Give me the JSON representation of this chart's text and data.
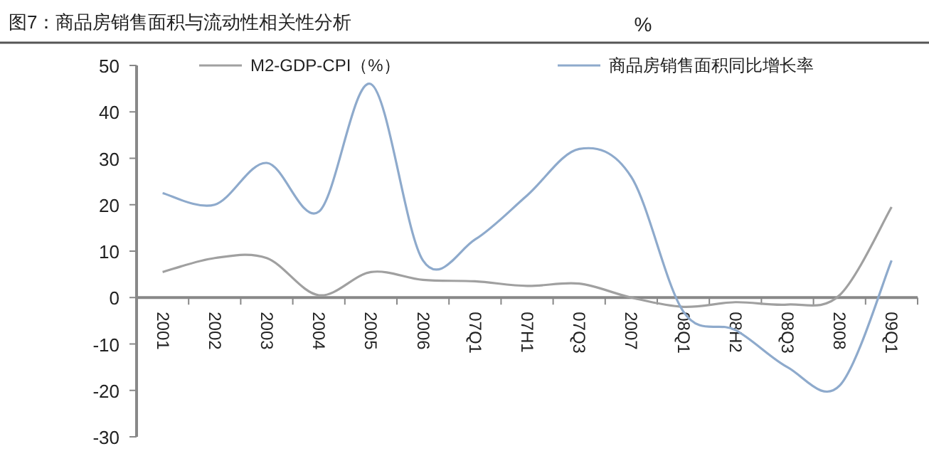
{
  "chart_data": {
    "type": "line",
    "title": "图7：商品房销售面积与流动性相关性分析",
    "ylabel": "%",
    "categories": [
      "2001",
      "2002",
      "2003",
      "2004",
      "2005",
      "2006",
      "07Q1",
      "07H1",
      "07Q3",
      "2007",
      "08Q1",
      "08H2",
      "08Q3",
      "2008",
      "09Q1"
    ],
    "series": [
      {
        "name": "M2-GDP-CPI（%）",
        "color": "#a0a0a0",
        "values": [
          5.5,
          8.5,
          8.5,
          0.5,
          5.5,
          3.8,
          3.5,
          2.5,
          3,
          0,
          -2,
          -1,
          -1.5,
          0.5,
          19.5
        ]
      },
      {
        "name": "商品房销售面积同比增长率",
        "color": "#8eaacc",
        "values": [
          22.5,
          20,
          29,
          18.5,
          46,
          8,
          12.5,
          22,
          32,
          26,
          -3,
          -7,
          -15,
          -19,
          8
        ]
      }
    ],
    "ylim": [
      -30,
      50
    ],
    "yticks": [
      -30,
      -20,
      -10,
      0,
      10,
      20,
      30,
      40,
      50
    ],
    "grid": false,
    "legend": "top",
    "marker": "none",
    "line_style": "solid"
  }
}
